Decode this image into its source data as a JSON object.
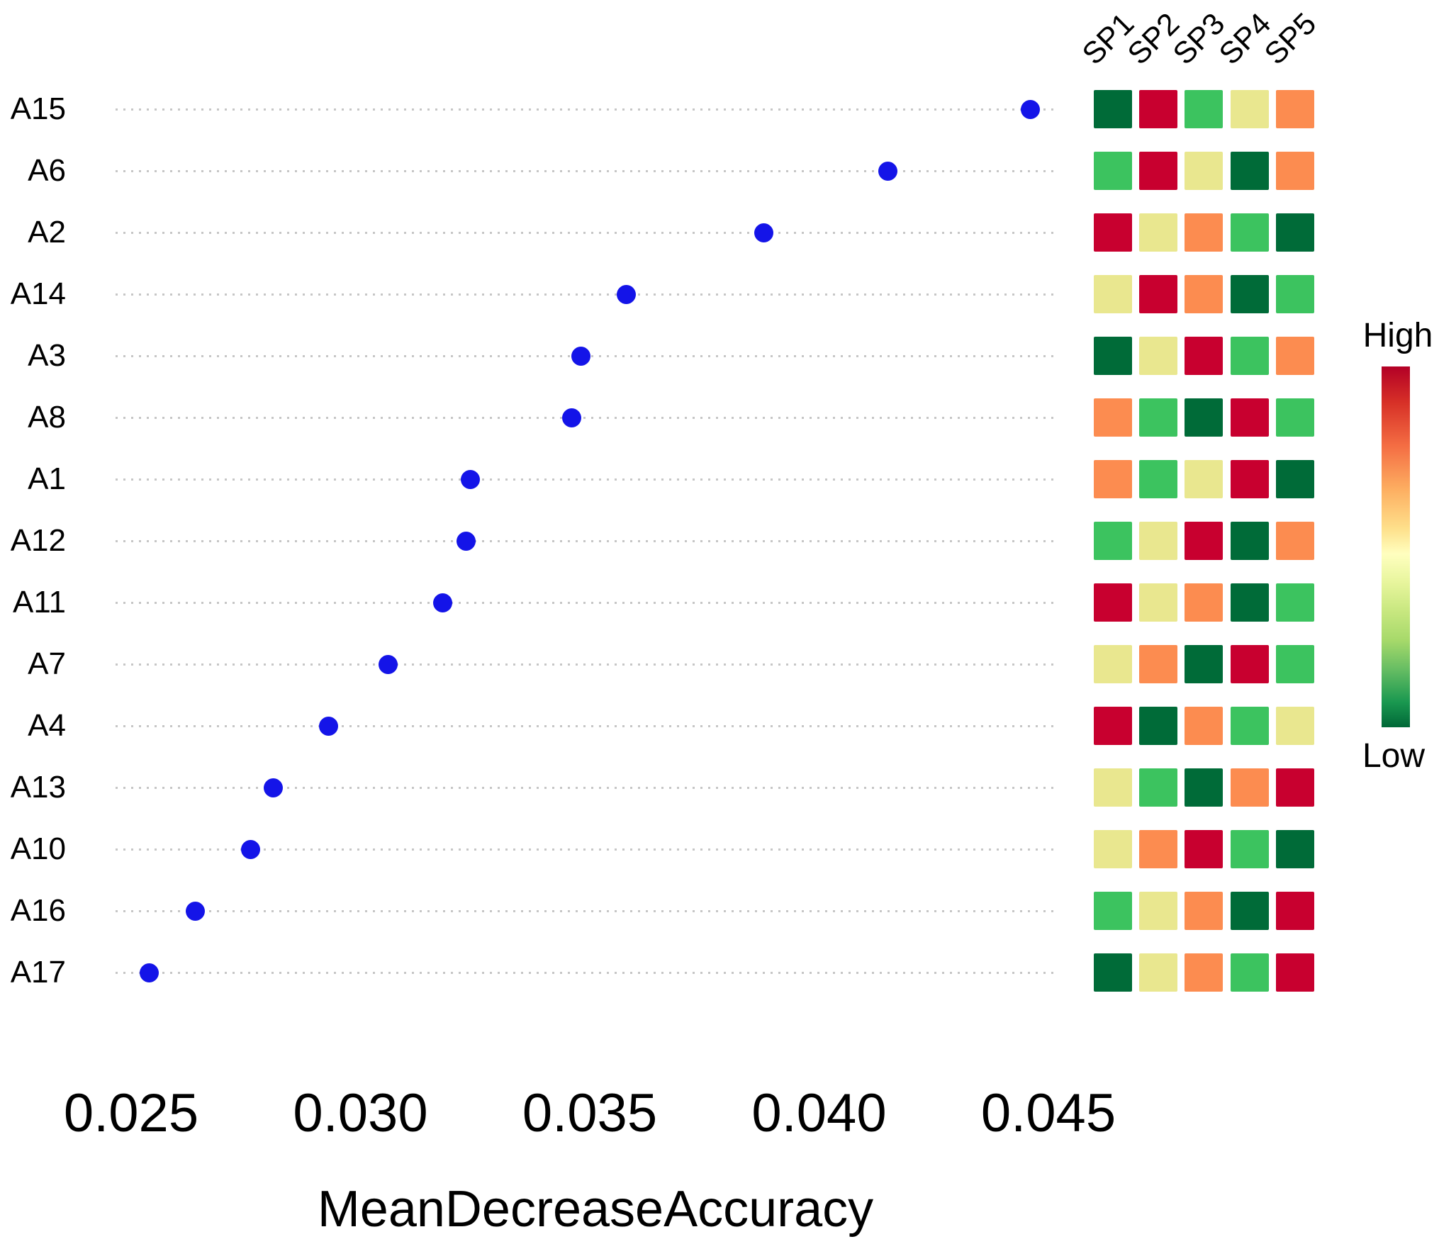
{
  "chart_data": {
    "type": "scatter",
    "title": "",
    "xlabel": "MeanDecreaseAccuracy",
    "x_ticks": [
      "0.025",
      "0.030",
      "0.035",
      "0.040",
      "0.045"
    ],
    "x_tick_values": [
      0.025,
      0.03,
      0.035,
      0.04,
      0.045
    ],
    "xlim": [
      0.0247,
      0.0452
    ],
    "grid": "horizontal-dotted",
    "legend_position": "right",
    "dot_color": "#1414e8",
    "grid_color": "#c6c6c6",
    "rows": [
      {
        "label": "A15",
        "value": 0.0446,
        "cells": [
          "dgreen",
          "red",
          "green",
          "yellow",
          "orange"
        ]
      },
      {
        "label": "A6",
        "value": 0.0415,
        "cells": [
          "green",
          "red",
          "yellow",
          "dgreen",
          "orange"
        ]
      },
      {
        "label": "A2",
        "value": 0.0388,
        "cells": [
          "red",
          "yellow",
          "orange",
          "green",
          "dgreen"
        ]
      },
      {
        "label": "A14",
        "value": 0.0358,
        "cells": [
          "yellow",
          "red",
          "orange",
          "dgreen",
          "green"
        ]
      },
      {
        "label": "A3",
        "value": 0.0348,
        "cells": [
          "dgreen",
          "yellow",
          "red",
          "green",
          "orange"
        ]
      },
      {
        "label": "A8",
        "value": 0.0346,
        "cells": [
          "orange",
          "green",
          "dgreen",
          "red",
          "green"
        ]
      },
      {
        "label": "A1",
        "value": 0.0324,
        "cells": [
          "orange",
          "green",
          "yellow",
          "red",
          "dgreen"
        ]
      },
      {
        "label": "A12",
        "value": 0.0323,
        "cells": [
          "green",
          "yellow",
          "red",
          "dgreen",
          "orange"
        ]
      },
      {
        "label": "A11",
        "value": 0.0318,
        "cells": [
          "red",
          "yellow",
          "orange",
          "dgreen",
          "green"
        ]
      },
      {
        "label": "A7",
        "value": 0.0306,
        "cells": [
          "yellow",
          "orange",
          "dgreen",
          "red",
          "green"
        ]
      },
      {
        "label": "A4",
        "value": 0.0293,
        "cells": [
          "red",
          "dgreen",
          "orange",
          "green",
          "yellow"
        ]
      },
      {
        "label": "A13",
        "value": 0.0281,
        "cells": [
          "yellow",
          "green",
          "dgreen",
          "orange",
          "red"
        ]
      },
      {
        "label": "A10",
        "value": 0.0276,
        "cells": [
          "yellow",
          "orange",
          "red",
          "green",
          "dgreen"
        ]
      },
      {
        "label": "A16",
        "value": 0.0264,
        "cells": [
          "green",
          "yellow",
          "orange",
          "dgreen",
          "red"
        ]
      },
      {
        "label": "A17",
        "value": 0.0254,
        "cells": [
          "dgreen",
          "yellow",
          "orange",
          "green",
          "red"
        ]
      }
    ],
    "heatmap_columns": [
      "SP1",
      "SP2",
      "SP3",
      "SP4",
      "SP5"
    ],
    "palette": {
      "dgreen": "#006b38",
      "green": "#3cc35f",
      "yellow": "#e9e78f",
      "orange": "#fc8c50",
      "red": "#c8002f"
    },
    "legend": {
      "high_label": "High",
      "low_label": "Low"
    }
  }
}
